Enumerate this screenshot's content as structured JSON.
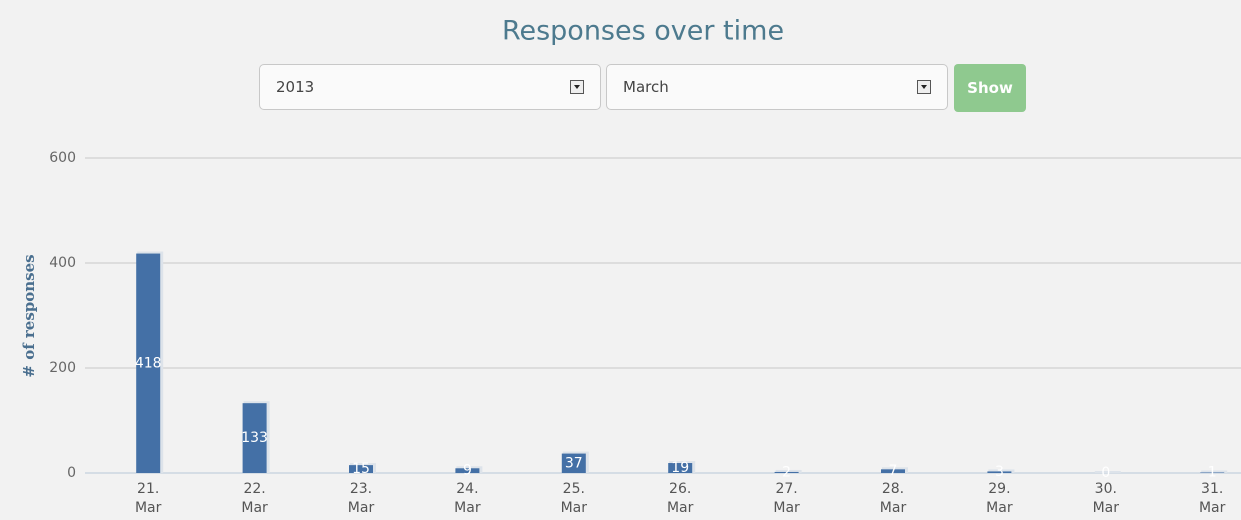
{
  "controls": {
    "year": "2013",
    "month": "March",
    "button": "Show"
  },
  "chart_data": {
    "type": "bar",
    "title": "Responses over time",
    "y_label": "# of responses",
    "categories": [
      "21. Mar",
      "22. Mar",
      "23. Mar",
      "24. Mar",
      "25. Mar",
      "26. Mar",
      "27. Mar",
      "28. Mar",
      "29. Mar",
      "30. Mar",
      "31. Mar"
    ],
    "values": [
      418,
      133,
      15,
      9,
      37,
      19,
      2,
      7,
      3,
      0,
      1
    ],
    "color": "#4470a6",
    "ylim": [
      0,
      600
    ],
    "yticks": [
      0,
      200,
      400,
      600
    ],
    "grid": true
  }
}
